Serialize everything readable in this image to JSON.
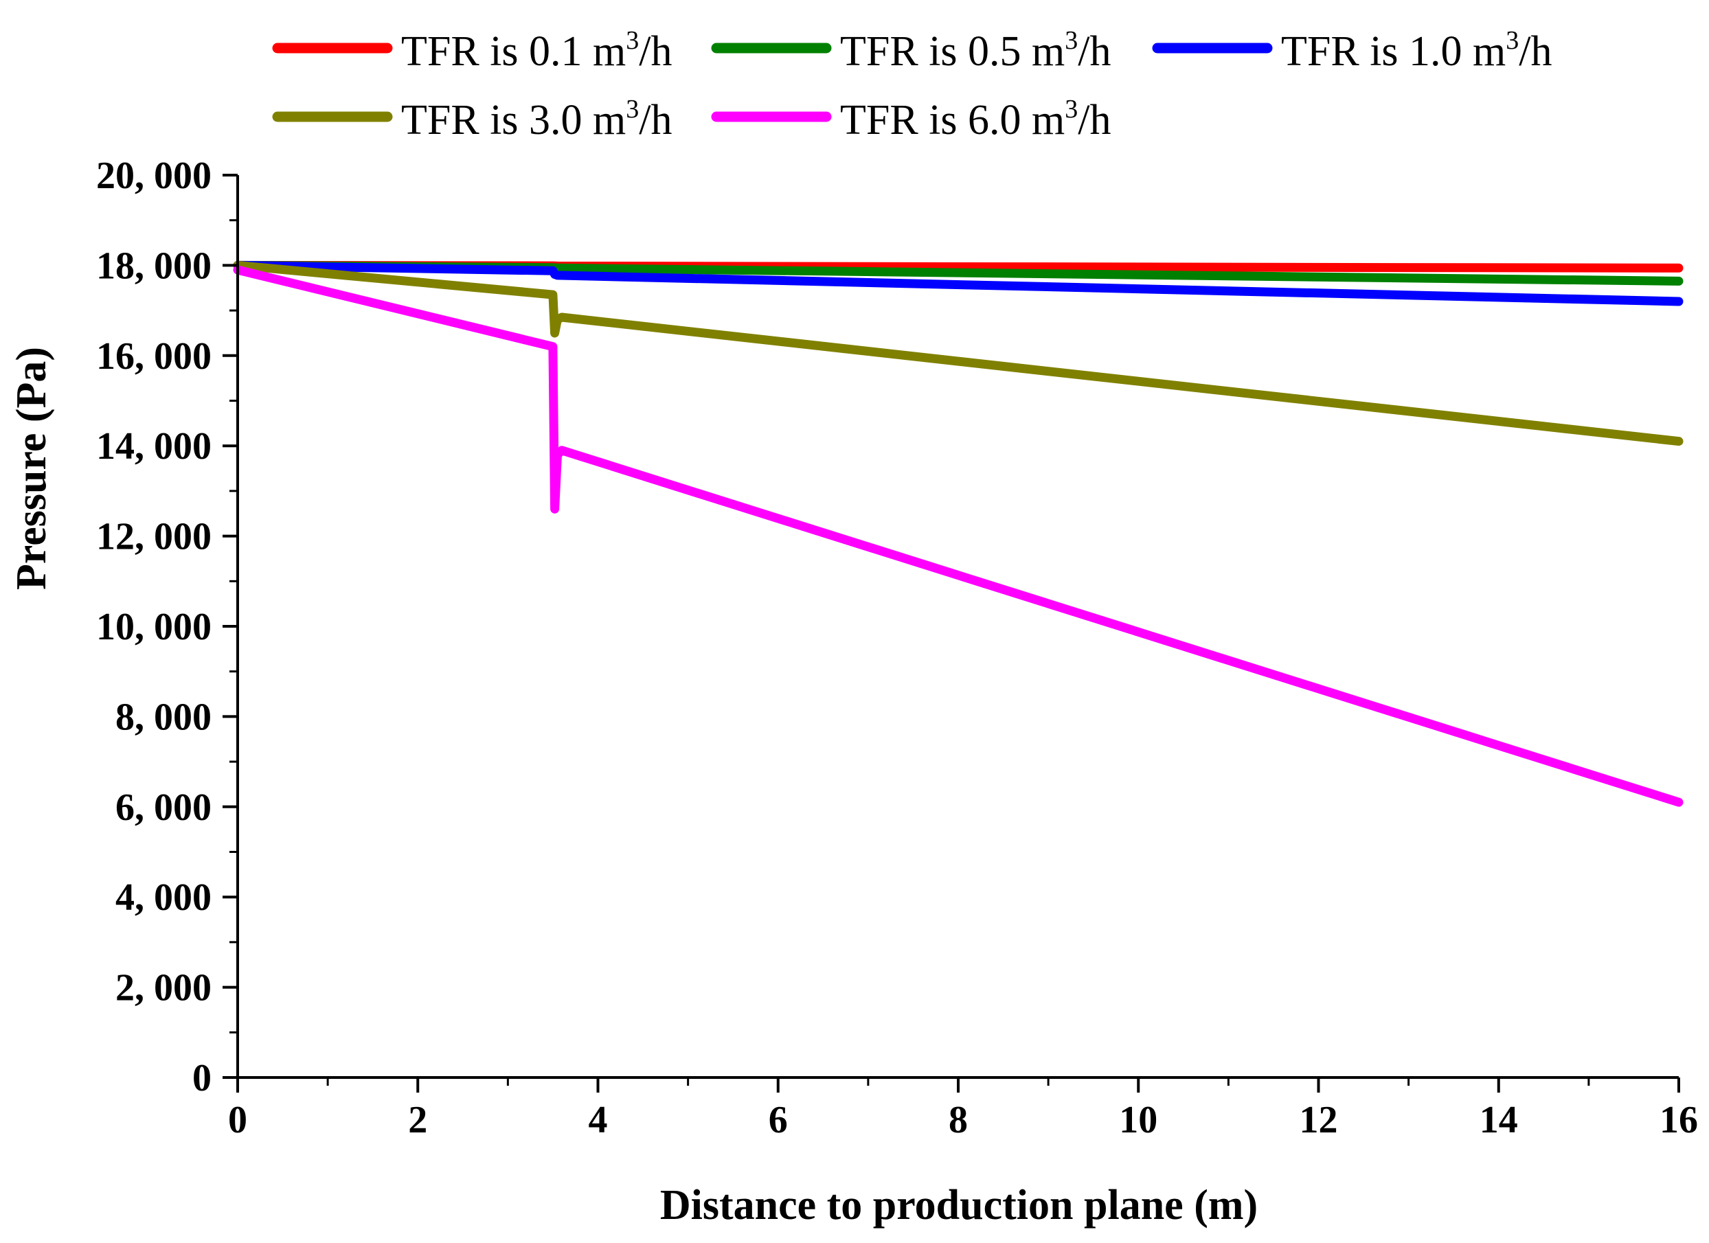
{
  "chart_data": {
    "type": "line",
    "title": "",
    "xlabel": "Distance to production plane (m)",
    "ylabel": "Pressure (Pa)",
    "xlim": [
      0,
      16
    ],
    "ylim": [
      0,
      20000
    ],
    "xticks": [
      0,
      2,
      4,
      6,
      8,
      10,
      12,
      14,
      16
    ],
    "yticks": [
      0,
      2000,
      4000,
      6000,
      8000,
      10000,
      12000,
      14000,
      16000,
      18000,
      20000
    ],
    "xtick_labels": [
      "0",
      "2",
      "4",
      "6",
      "8",
      "10",
      "12",
      "14",
      "16"
    ],
    "ytick_labels": [
      "0",
      "2, 000",
      "4, 000",
      "6, 000",
      "8, 000",
      "10, 000",
      "12, 000",
      "14, 000",
      "16, 000",
      "18, 000",
      "20, 000"
    ],
    "grid": false,
    "legend_position": "top",
    "series": [
      {
        "name": "TFR is 0.1 m3/h",
        "label_prefix": "TFR is 0.1 m",
        "label_sup": "3",
        "label_suffix": "/h",
        "color": "#ff0000",
        "x": [
          0,
          3.5,
          3.55,
          16
        ],
        "y": [
          18000,
          17990,
          17985,
          17940
        ]
      },
      {
        "name": "TFR is 0.5 m3/h",
        "label_prefix": "TFR is 0.5 m",
        "label_sup": "3",
        "label_suffix": "/h",
        "color": "#008000",
        "x": [
          0,
          3.5,
          3.55,
          16
        ],
        "y": [
          18000,
          17950,
          17940,
          17650
        ]
      },
      {
        "name": "TFR is 1.0 m3/h",
        "label_prefix": "TFR is 1.0 m",
        "label_sup": "3",
        "label_suffix": "/h",
        "color": "#0000ff",
        "x": [
          0,
          3.5,
          3.52,
          3.55,
          16
        ],
        "y": [
          18000,
          17880,
          17800,
          17780,
          17200
        ]
      },
      {
        "name": "TFR is 3.0 m3/h",
        "label_prefix": "TFR is 3.0 m",
        "label_sup": "3",
        "label_suffix": "/h",
        "color": "#808000",
        "x": [
          0,
          3.5,
          3.52,
          3.55,
          3.6,
          16
        ],
        "y": [
          18000,
          17350,
          16500,
          16800,
          16850,
          14100
        ]
      },
      {
        "name": "TFR is 6.0 m3/h",
        "label_prefix": "TFR is 6.0 m",
        "label_sup": "3",
        "label_suffix": "/h",
        "color": "#ff00ff",
        "x": [
          0,
          3.5,
          3.52,
          3.55,
          3.6,
          16
        ],
        "y": [
          17900,
          16200,
          12600,
          13800,
          13900,
          6100
        ]
      }
    ]
  }
}
